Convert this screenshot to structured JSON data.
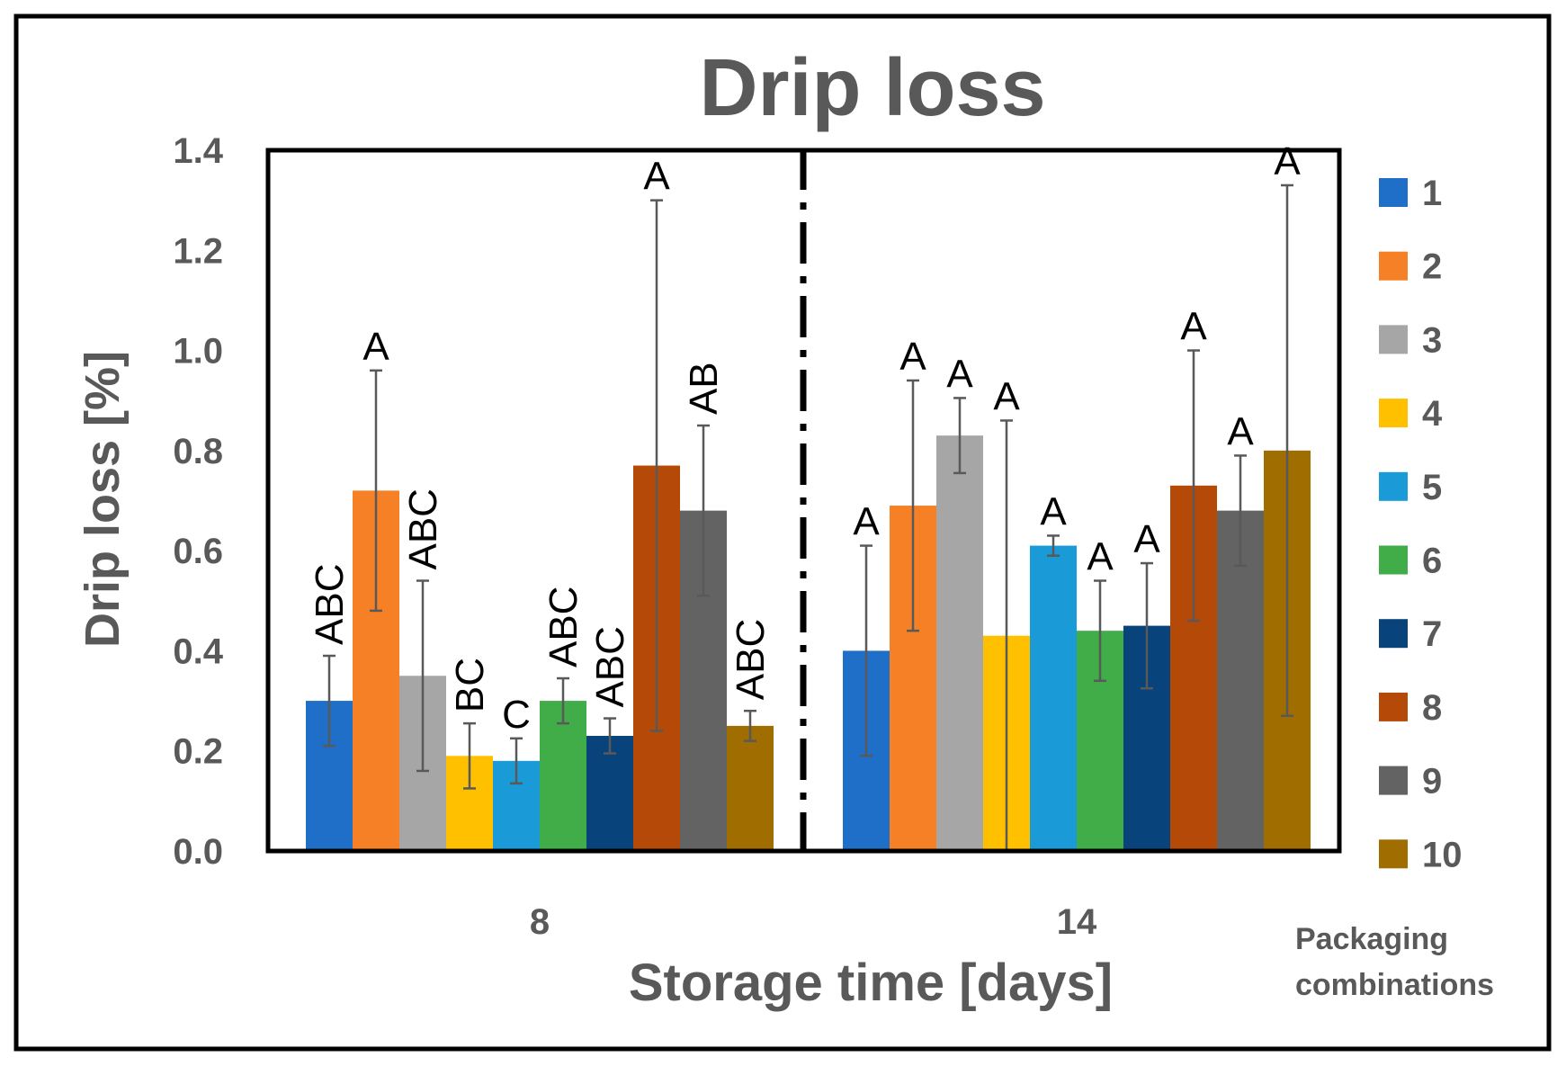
{
  "chart_data": {
    "type": "bar",
    "title": "Drip loss",
    "xlabel": "Storage time [days]",
    "ylabel": "Drip loss [%]",
    "ylim": [
      0,
      1.4
    ],
    "yticks": [
      "0.0",
      "0.2",
      "0.4",
      "0.6",
      "0.8",
      "1.0",
      "1.2",
      "1.4"
    ],
    "categories": [
      "8",
      "14"
    ],
    "legend_title": [
      "Packaging",
      "combinations"
    ],
    "legend_position": "right",
    "series": [
      {
        "name": "1",
        "color": "#1F6FC9",
        "values": [
          0.3,
          0.4
        ],
        "errors": [
          0.09,
          0.21
        ],
        "labels": [
          "ABC",
          "A"
        ]
      },
      {
        "name": "2",
        "color": "#F58025",
        "values": [
          0.72,
          0.69
        ],
        "errors": [
          0.24,
          0.25
        ],
        "labels": [
          "A",
          "A"
        ]
      },
      {
        "name": "3",
        "color": "#A6A6A6",
        "values": [
          0.35,
          0.83
        ],
        "errors": [
          0.19,
          0.075
        ],
        "labels": [
          "ABC",
          "A"
        ]
      },
      {
        "name": "4",
        "color": "#FFC000",
        "values": [
          0.19,
          0.43
        ],
        "errors": [
          0.065,
          0.43
        ],
        "labels": [
          "BC",
          "A"
        ]
      },
      {
        "name": "5",
        "color": "#1A9BD7",
        "values": [
          0.18,
          0.61
        ],
        "errors": [
          0.045,
          0.02
        ],
        "labels": [
          "C",
          "A"
        ]
      },
      {
        "name": "6",
        "color": "#41AD49",
        "values": [
          0.3,
          0.44
        ],
        "errors": [
          0.045,
          0.1
        ],
        "labels": [
          "ABC",
          "A"
        ]
      },
      {
        "name": "7",
        "color": "#08437B",
        "values": [
          0.23,
          0.45
        ],
        "errors": [
          0.035,
          0.125
        ],
        "labels": [
          "ABC",
          "A"
        ]
      },
      {
        "name": "8",
        "color": "#B54A08",
        "values": [
          0.77,
          0.73
        ],
        "errors": [
          0.53,
          0.27
        ],
        "labels": [
          "A",
          "A"
        ]
      },
      {
        "name": "9",
        "color": "#636363",
        "values": [
          0.68,
          0.68
        ],
        "errors": [
          0.17,
          0.11
        ],
        "labels": [
          "AB",
          "A"
        ]
      },
      {
        "name": "10",
        "color": "#A06E00",
        "values": [
          0.25,
          0.8
        ],
        "errors": [
          0.03,
          0.53
        ],
        "labels": [
          "ABC",
          "A"
        ]
      }
    ]
  }
}
